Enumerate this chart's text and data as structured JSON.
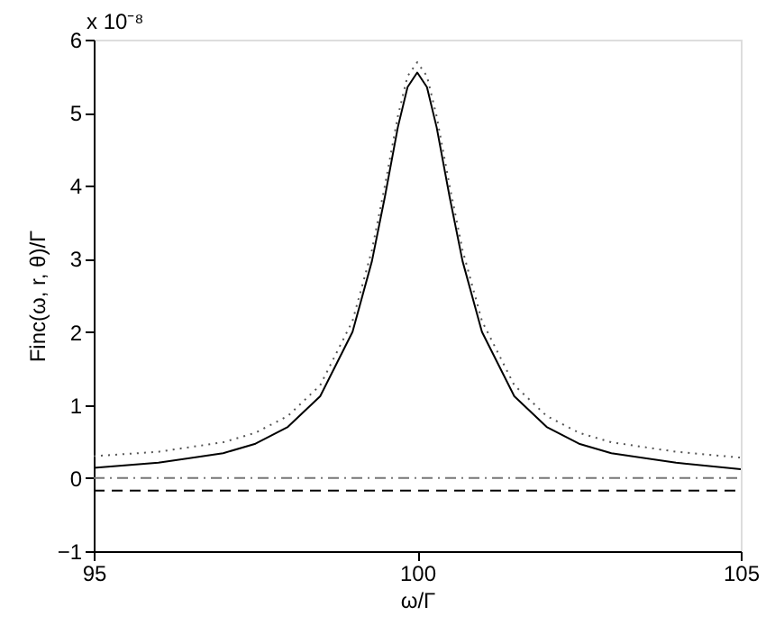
{
  "chart_data": {
    "type": "line",
    "xlabel": "ω/Γ",
    "ylabel": "Finc(ω, r, θ)/Γ",
    "annotations": [
      "x 10⁻⁸"
    ],
    "xlim": [
      95,
      105
    ],
    "xticks": [
      95,
      100,
      105
    ],
    "ylim": [
      -1,
      6
    ],
    "yticks": [
      -1,
      0,
      1,
      2,
      3,
      4,
      5,
      6
    ],
    "grid": false,
    "legend": false,
    "series": [
      {
        "color": "#000000",
        "line_style": "solid",
        "x": [
          95,
          96,
          97,
          97.5,
          98,
          98.5,
          99,
          99.3,
          99.5,
          99.7,
          99.85,
          100,
          100.15,
          100.3,
          100.5,
          100.7,
          101,
          101.5,
          102,
          102.5,
          103,
          104,
          105
        ],
        "values": [
          0.14,
          0.21,
          0.34,
          0.47,
          0.7,
          1.12,
          2.0,
          2.97,
          3.85,
          4.8,
          5.35,
          5.55,
          5.35,
          4.8,
          3.85,
          2.97,
          2.0,
          1.12,
          0.7,
          0.47,
          0.34,
          0.21,
          0.12
        ]
      },
      {
        "color": "#555555",
        "line_style": "dotted",
        "x": [
          95,
          96,
          97,
          97.5,
          98,
          98.5,
          99,
          99.3,
          99.5,
          99.7,
          99.85,
          100,
          100.15,
          100.3,
          100.5,
          100.7,
          101,
          101.5,
          102,
          102.5,
          103,
          104,
          105
        ],
        "values": [
          0.3,
          0.36,
          0.49,
          0.62,
          0.85,
          1.27,
          2.15,
          3.12,
          4.0,
          4.95,
          5.5,
          5.69,
          5.5,
          4.95,
          4.0,
          3.12,
          2.15,
          1.27,
          0.85,
          0.62,
          0.49,
          0.36,
          0.28
        ]
      },
      {
        "color": "#777777",
        "line_style": "dashdot",
        "x": [
          95,
          105
        ],
        "values": [
          0.0,
          0.0
        ]
      },
      {
        "color": "#000000",
        "line_style": "dashed",
        "x": [
          95,
          105
        ],
        "values": [
          -0.17,
          -0.17
        ]
      }
    ]
  }
}
